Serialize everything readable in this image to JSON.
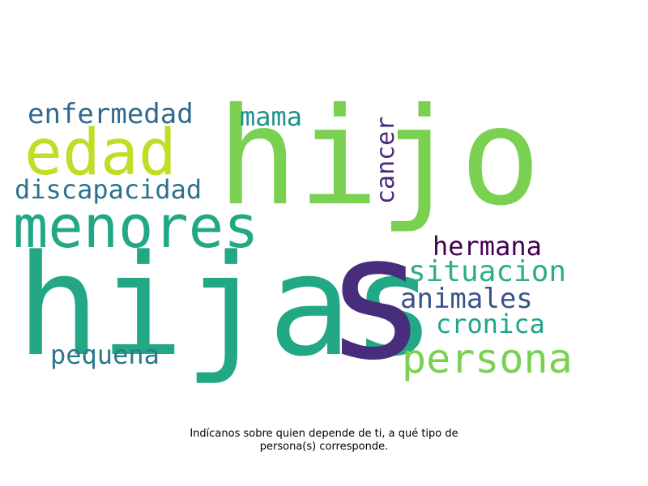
{
  "words": [
    {
      "key": "hijo",
      "text": "hijo",
      "color": "#7ad151"
    },
    {
      "key": "hijas",
      "text": "hijas",
      "color": "#22a884"
    },
    {
      "key": "s",
      "text": "s",
      "color": "#472d7b"
    },
    {
      "key": "menores",
      "text": "menores",
      "color": "#22a884"
    },
    {
      "key": "edad",
      "text": "edad",
      "color": "#bddf26"
    },
    {
      "key": "persona",
      "text": "persona",
      "color": "#7ad151"
    },
    {
      "key": "enfermedad",
      "text": "enfermedad",
      "color": "#31688e"
    },
    {
      "key": "discapacidad",
      "text": "discapacidad",
      "color": "#2c728e"
    },
    {
      "key": "mama",
      "text": "mama",
      "color": "#21918c"
    },
    {
      "key": "cancer",
      "text": "cancer",
      "color": "#482878"
    },
    {
      "key": "hermana",
      "text": "hermana",
      "color": "#440154"
    },
    {
      "key": "situacion",
      "text": "situacion",
      "color": "#2ab07f"
    },
    {
      "key": "animales",
      "text": "animales",
      "color": "#3b528b"
    },
    {
      "key": "cronica",
      "text": "cronica",
      "color": "#20a486"
    },
    {
      "key": "pequena",
      "text": "pequena",
      "color": "#2a788e"
    }
  ],
  "caption": {
    "line1": "Indícanos sobre quien depende de ti, a qué tipo de",
    "line2": "persona(s) corresponde."
  }
}
